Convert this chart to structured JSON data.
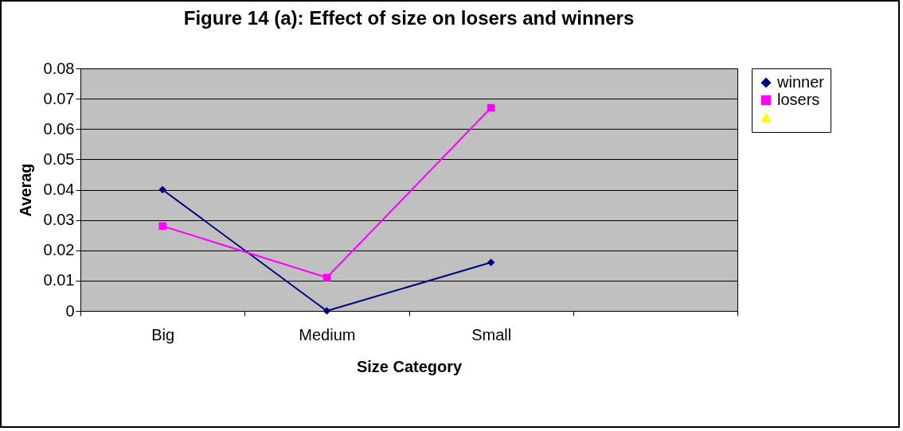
{
  "chart_data": {
    "type": "line",
    "title": "Figure 14 (a): Effect of size on losers and winners",
    "xlabel": "Size Category",
    "ylabel": "Averag",
    "categories": [
      "Big",
      "Medium",
      "Small",
      null
    ],
    "series": [
      {
        "name": "winner",
        "color": "#000080",
        "marker": "diamond",
        "values": [
          0.04,
          0,
          0.016,
          null
        ]
      },
      {
        "name": "losers",
        "color": "#ff00ff",
        "marker": "square",
        "values": [
          0.028,
          0.011,
          0.067,
          null
        ]
      },
      {
        "color": "#ffff00",
        "marker": "triangle",
        "values": [
          null,
          null,
          null,
          null
        ]
      }
    ],
    "ylim": [
      0,
      0.08
    ],
    "yticks": [
      0,
      0.01,
      0.02,
      0.03,
      0.04,
      0.05,
      0.06,
      0.07,
      0.08
    ],
    "grid": "y",
    "legend": "right"
  }
}
